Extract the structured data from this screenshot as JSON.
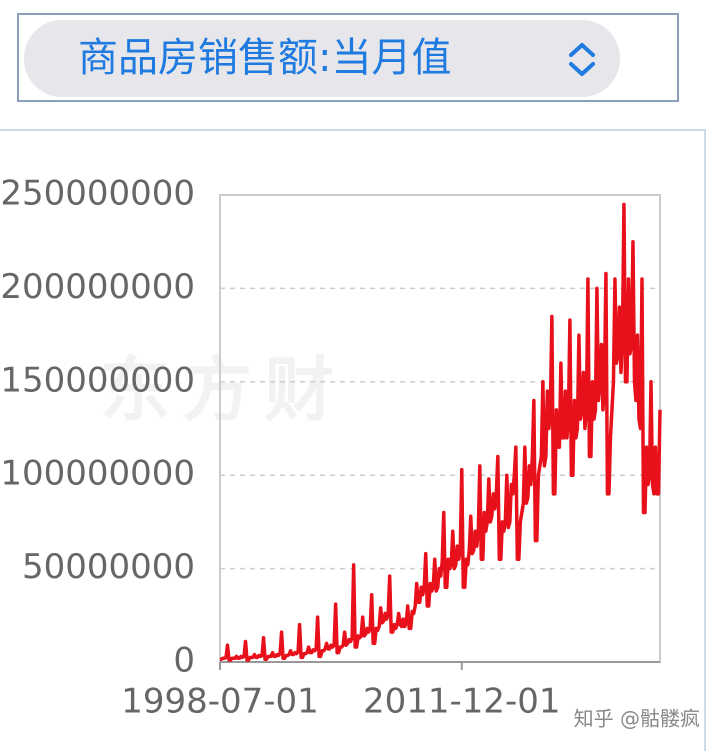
{
  "dropdown": {
    "label": "商品房销售额:当月值"
  },
  "watermark": "东方财",
  "credit": "知乎 @骷髅疯",
  "chart_data": {
    "type": "line",
    "categories": [
      "1998-07-01",
      null,
      null,
      null,
      null,
      null,
      null,
      null,
      null,
      null,
      null,
      null,
      null,
      null,
      null,
      null,
      null,
      null,
      null,
      null,
      null,
      null,
      null,
      null,
      null,
      null,
      null,
      null,
      null,
      null,
      null,
      null,
      null,
      null,
      null,
      null,
      null,
      null,
      null,
      null,
      null,
      null,
      null,
      null,
      null,
      null,
      null,
      null,
      null,
      null,
      null,
      null,
      null,
      null,
      null,
      null,
      null,
      null,
      null,
      null,
      null,
      null,
      null,
      null,
      null,
      null,
      null,
      null,
      null,
      null,
      null,
      null,
      null,
      null,
      null,
      null,
      null,
      null,
      null,
      null,
      null,
      null,
      null,
      null,
      null,
      null,
      null,
      null,
      null,
      null,
      null,
      null,
      null,
      null,
      null,
      null,
      null,
      null,
      null,
      null,
      null,
      null,
      null,
      null,
      null,
      null,
      null,
      null,
      null,
      null,
      null,
      null,
      null,
      null,
      null,
      null,
      null,
      null,
      null,
      null,
      null,
      null,
      null,
      null,
      null,
      null,
      null,
      null,
      null,
      null,
      null,
      null,
      null,
      null,
      null,
      null,
      null,
      null,
      null,
      null,
      null,
      null,
      null,
      null,
      null,
      null,
      null,
      null,
      null,
      null,
      null,
      null,
      null,
      null,
      null,
      null,
      null,
      null,
      null,
      null,
      null,
      "2011-12-01",
      null,
      null,
      null,
      null,
      null,
      null,
      null,
      null,
      null,
      null,
      null,
      null,
      null,
      null,
      null,
      null,
      null,
      null,
      null,
      null,
      null,
      null,
      null,
      null,
      null,
      null,
      null,
      null,
      null,
      null,
      null,
      null,
      null,
      null,
      null,
      null,
      null,
      null,
      null,
      null,
      null,
      null,
      null,
      null,
      null,
      null,
      null,
      null,
      null,
      null,
      null,
      null,
      null,
      null,
      null,
      null,
      null,
      null,
      null,
      null,
      null,
      null,
      null,
      null,
      null,
      null,
      null,
      null,
      null,
      null,
      null,
      null,
      null,
      null,
      null,
      null,
      null,
      null,
      null,
      null,
      null,
      null,
      null,
      null,
      null,
      null,
      null,
      null,
      null,
      null,
      null,
      null,
      null,
      null,
      null,
      null,
      null,
      null,
      null,
      null,
      null,
      null,
      null,
      null,
      null,
      null,
      null,
      null,
      null,
      null,
      null,
      null,
      null,
      null,
      null,
      null,
      null,
      null,
      null,
      null,
      null,
      null,
      null,
      null,
      null,
      null,
      null,
      null,
      null,
      null,
      null,
      null
    ],
    "series": [
      {
        "color": "#e8101a",
        "values": [
          1500000.0,
          1500000.0,
          2000000.0,
          2000000.0,
          2500000.0,
          9000000.0,
          1000000.0,
          1000000.0,
          2000000.0,
          2000000.0,
          2000000.0,
          3000000.0,
          2000000.0,
          2000000.0,
          3000000.0,
          2500000.0,
          3000000.0,
          11000000.0,
          1000000.0,
          1000000.0,
          2500000.0,
          2500000.0,
          2500000.0,
          4000000.0,
          2500000.0,
          2500000.0,
          3500000.0,
          3000000.0,
          3500000.0,
          13000000.0,
          1500000.0,
          1500000.0,
          3000000.0,
          3000000.0,
          3000000.0,
          5000000.0,
          3000000.0,
          3000000.0,
          4000000.0,
          3500000.0,
          4500000.0,
          16000000.0,
          2000000.0,
          2000000.0,
          3500000.0,
          3500000.0,
          4000000.0,
          6000000.0,
          4000000.0,
          4000000.0,
          5000000.0,
          4500000.0,
          5500000.0,
          20000000.0,
          2500000.0,
          2500000.0,
          4500000.0,
          4500000.0,
          5000000.0,
          8000000.0,
          5000000.0,
          5000000.0,
          6500000.0,
          6000000.0,
          7000000.0,
          24000000.0,
          3000000.0,
          3000000.0,
          6000000.0,
          6000000.0,
          7000000.0,
          10000000.0,
          7000000.0,
          7000000.0,
          9000000.0,
          8000000.0,
          9000000.0,
          31000000.0,
          5000000.0,
          5000000.0,
          8000000.0,
          8000000.0,
          9000000.0,
          16000000.0,
          9000000.0,
          10000000.0,
          12000000.0,
          11000000.0,
          13000000.0,
          52000000.0,
          8000000.0,
          8000000.0,
          14000000.0,
          13000000.0,
          14000000.0,
          24000000.0,
          14000000.0,
          15000000.0,
          18000000.0,
          16000000.0,
          18000000.0,
          36000000.0,
          10000000.0,
          10000000.0,
          18000000.0,
          17000000.0,
          19000000.0,
          29000000.0,
          21000000.0,
          22000000.0,
          26000000.0,
          23000000.0,
          26000000.0,
          46000000.0,
          16000000.0,
          16000000.0,
          20000000.0,
          18000000.0,
          20000000.0,
          26000000.0,
          20000000.0,
          19000000.0,
          23000000.0,
          19000000.0,
          21000000.0,
          30000000.0,
          18000000.0,
          18000000.0,
          27000000.0,
          26000000.0,
          30000000.0,
          42000000.0,
          32000000.0,
          32000000.0,
          40000000.0,
          36000000.0,
          40000000.0,
          58000000.0,
          30000000.0,
          30000000.0,
          42000000.0,
          38000000.0,
          40000000.0,
          55000000.0,
          38000000.0,
          40000000.0,
          50000000.0,
          46000000.0,
          54000000.0,
          80000000.0,
          40000000.0,
          40000000.0,
          55000000.0,
          50000000.0,
          52000000.0,
          70000000.0,
          50000000.0,
          52000000.0,
          62000000.0,
          55000000.0,
          60000000.0,
          103000000.0,
          40000000.0,
          40000000.0,
          55000000.0,
          52000000.0,
          60000000.0,
          78000000.0,
          58000000.0,
          60000000.0,
          70000000.0,
          62000000.0,
          70000000.0,
          105000000.0,
          55000000.0,
          55000000.0,
          80000000.0,
          70000000.0,
          75000000.0,
          98000000.0,
          75000000.0,
          78000000.0,
          90000000.0,
          82000000.0,
          90000000.0,
          110000000.0,
          55000000.0,
          55000000.0,
          75000000.0,
          70000000.0,
          75000000.0,
          100000000.0,
          72000000.0,
          75000000.0,
          95000000.0,
          90000000.0,
          100000000.0,
          115000000.0,
          55000000.0,
          55000000.0,
          75000000.0,
          80000000.0,
          85000000.0,
          115000000.0,
          85000000.0,
          88000000.0,
          105000000.0,
          95000000.0,
          110000000.0,
          140000000.0,
          65000000.0,
          65000000.0,
          100000000.0,
          105000000.0,
          110000000.0,
          150000000.0,
          105000000.0,
          110000000.0,
          145000000.0,
          125000000.0,
          135000000.0,
          185000000.0,
          90000000.0,
          90000000.0,
          135000000.0,
          115000000.0,
          115000000.0,
          160000000.0,
          120000000.0,
          120000000.0,
          145000000.0,
          120000000.0,
          130000000.0,
          183000000.0,
          100000000.0,
          100000000.0,
          140000000.0,
          120000000.0,
          125000000.0,
          175000000.0,
          130000000.0,
          135000000.0,
          155000000.0,
          125000000.0,
          135000000.0,
          205000000.0,
          110000000.0,
          110000000.0,
          150000000.0,
          130000000.0,
          135000000.0,
          200000000.0,
          140000000.0,
          150000000.0,
          170000000.0,
          135000000.0,
          150000000.0,
          208000000.0,
          90000000.0,
          90000000.0,
          120000000.0,
          135000000.0,
          150000000.0,
          205000000.0,
          160000000.0,
          165000000.0,
          190000000.0,
          155000000.0,
          175000000.0,
          245000000.0,
          150000000.0,
          150000000.0,
          205000000.0,
          165000000.0,
          170000000.0,
          225000000.0,
          150000000.0,
          140000000.0,
          175000000.0,
          130000000.0,
          125000000.0,
          205000000.0,
          80000000.0,
          80000000.0,
          115000000.0,
          95000000.0,
          100000000.0,
          150000000.0,
          95000000.0,
          90000000.0,
          115000000.0,
          90000000.0,
          90000000.0,
          135000000.0
        ]
      }
    ],
    "ylim": [
      0,
      250000000
    ],
    "yticks": [
      0,
      50000000,
      100000000,
      150000000,
      200000000,
      250000000
    ],
    "grid": true
  }
}
